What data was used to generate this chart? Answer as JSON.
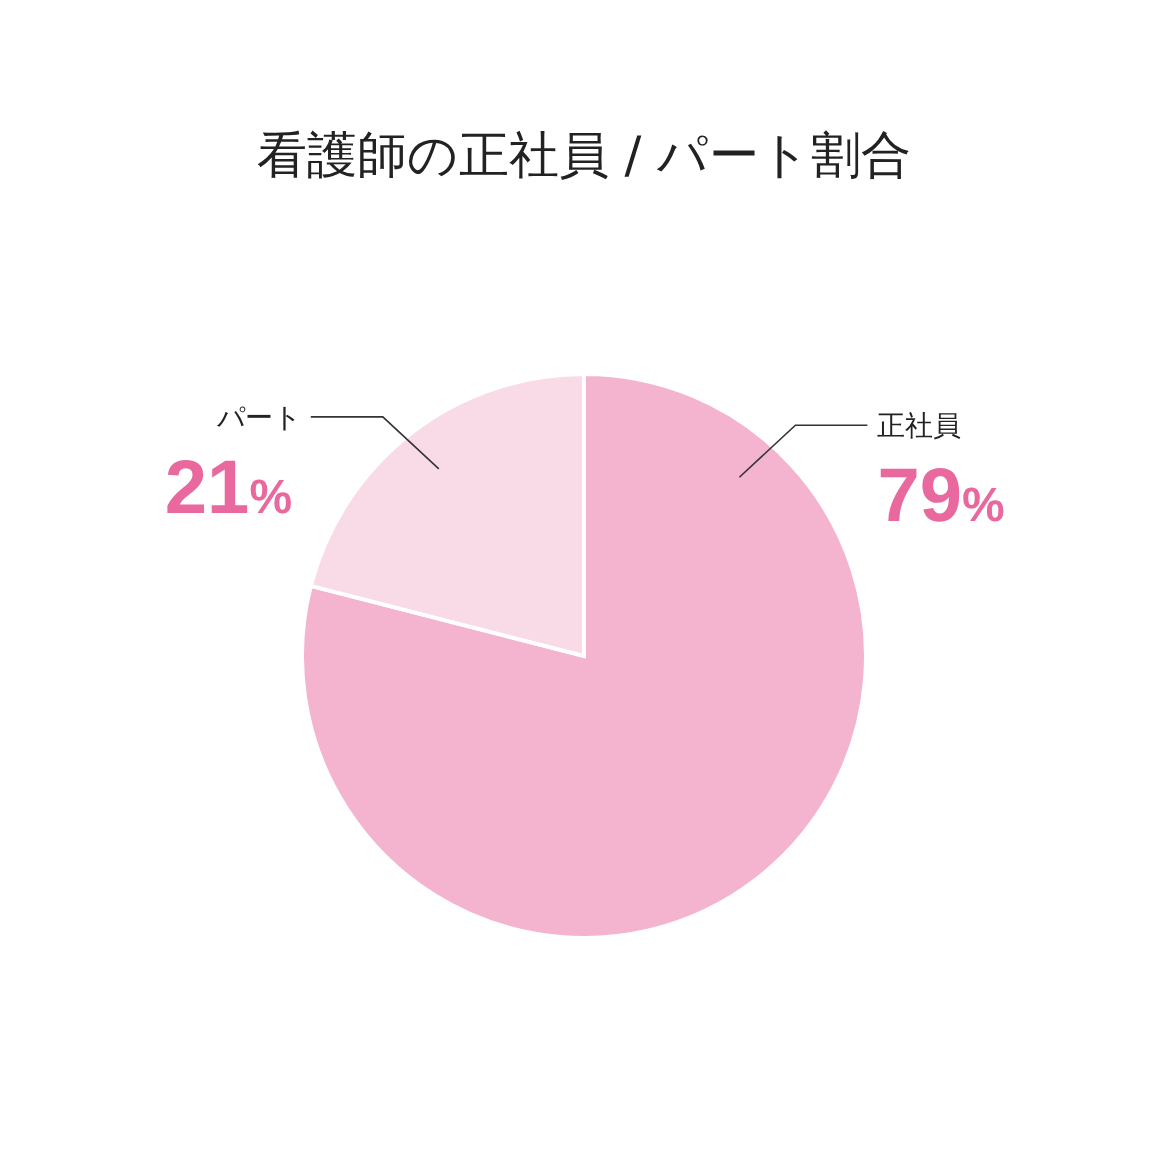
{
  "chart_data": {
    "type": "pie",
    "title": "看護師の正社員 / パート割合",
    "categories": [
      "正社員",
      "パート"
    ],
    "values": [
      79,
      21
    ],
    "colors": [
      "#f4b3cf",
      "#f9dbe8"
    ],
    "value_labels": [
      "79%",
      "21%"
    ]
  }
}
